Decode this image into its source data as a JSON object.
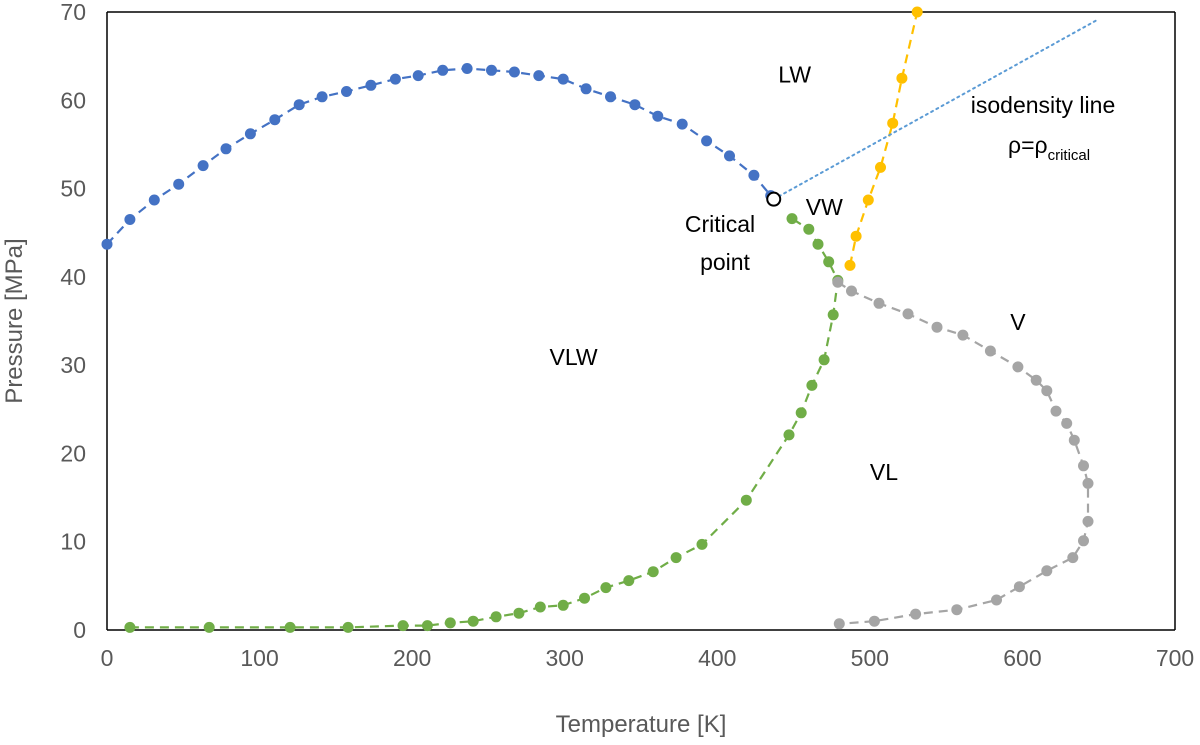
{
  "chart_data": {
    "type": "scatter",
    "xlabel": "Temperature [K]",
    "ylabel": "Pressure [MPa]",
    "xlim": [
      0,
      700
    ],
    "ylim": [
      0,
      70
    ],
    "xticks": [
      0,
      100,
      200,
      300,
      400,
      500,
      600,
      700
    ],
    "yticks": [
      0,
      10,
      20,
      30,
      40,
      50,
      60,
      70
    ],
    "grid": false,
    "legend": "none",
    "series": [
      {
        "color": "#4472C4",
        "style": "dashed-line-with-markers",
        "points": [
          [
            0,
            43.7
          ],
          [
            15,
            46.5
          ],
          [
            31,
            48.7
          ],
          [
            47,
            50.5
          ],
          [
            63,
            52.6
          ],
          [
            78,
            54.5
          ],
          [
            94,
            56.2
          ],
          [
            110,
            57.8
          ],
          [
            126,
            59.5
          ],
          [
            141,
            60.4
          ],
          [
            157,
            61.0
          ],
          [
            173,
            61.7
          ],
          [
            189,
            62.4
          ],
          [
            204,
            62.8
          ],
          [
            220,
            63.4
          ],
          [
            236,
            63.6
          ],
          [
            252,
            63.4
          ],
          [
            267,
            63.2
          ],
          [
            283,
            62.8
          ],
          [
            299,
            62.4
          ],
          [
            314,
            61.3
          ],
          [
            330,
            60.4
          ],
          [
            346,
            59.5
          ],
          [
            361,
            58.2
          ],
          [
            377,
            57.3
          ],
          [
            393,
            55.4
          ],
          [
            408,
            53.7
          ],
          [
            424,
            51.5
          ],
          [
            435,
            49.2
          ]
        ]
      },
      {
        "color": "#70AD47",
        "style": "dashed-line-with-markers",
        "points": [
          [
            15,
            0.3
          ],
          [
            67,
            0.3
          ],
          [
            120,
            0.3
          ],
          [
            158,
            0.3
          ],
          [
            194,
            0.5
          ],
          [
            210,
            0.5
          ],
          [
            225,
            0.8
          ],
          [
            240,
            1.0
          ],
          [
            255,
            1.5
          ],
          [
            270,
            1.9
          ],
          [
            284,
            2.6
          ],
          [
            299,
            2.8
          ],
          [
            313,
            3.6
          ],
          [
            327,
            4.8
          ],
          [
            342,
            5.6
          ],
          [
            358,
            6.6
          ],
          [
            373,
            8.2
          ],
          [
            390,
            9.7
          ],
          [
            419,
            14.7
          ],
          [
            447,
            22.1
          ],
          [
            455,
            24.6
          ],
          [
            462,
            27.7
          ],
          [
            470,
            30.6
          ],
          [
            476,
            35.7
          ],
          [
            479,
            39.6
          ],
          [
            473,
            41.7
          ],
          [
            466,
            43.7
          ],
          [
            460,
            45.4
          ],
          [
            449,
            46.6
          ]
        ]
      },
      {
        "color": "#A5A5A5",
        "style": "dashed-line-with-markers",
        "points": [
          [
            479,
            39.4
          ],
          [
            488,
            38.4
          ],
          [
            506,
            37.0
          ],
          [
            525,
            35.8
          ],
          [
            544,
            34.3
          ],
          [
            561,
            33.4
          ],
          [
            579,
            31.6
          ],
          [
            597,
            29.8
          ],
          [
            609,
            28.3
          ],
          [
            616,
            27.1
          ],
          [
            622,
            24.8
          ],
          [
            629,
            23.4
          ],
          [
            634,
            21.5
          ],
          [
            640,
            18.6
          ],
          [
            643,
            16.6
          ],
          [
            643,
            12.3
          ],
          [
            640,
            10.1
          ],
          [
            633,
            8.2
          ],
          [
            616,
            6.7
          ],
          [
            598,
            4.9
          ],
          [
            583,
            3.4
          ],
          [
            557,
            2.3
          ],
          [
            530,
            1.8
          ],
          [
            503,
            1.0
          ],
          [
            480,
            0.7
          ]
        ]
      },
      {
        "color": "#FFC000",
        "style": "dashed-line-with-markers",
        "points": [
          [
            487,
            41.3
          ],
          [
            491,
            44.6
          ],
          [
            499,
            48.7
          ],
          [
            507,
            52.4
          ],
          [
            515,
            57.4
          ],
          [
            521,
            62.5
          ],
          [
            531,
            70.0
          ]
        ]
      },
      {
        "color": "#5B9BD5",
        "style": "dotted-line",
        "points": [
          [
            437,
            48.8
          ],
          [
            650,
            69.2
          ]
        ]
      }
    ],
    "critical_point": {
      "x": 437,
      "y": 48.8
    },
    "annotations": [
      {
        "text": "LW",
        "x": 440,
        "y": 62
      },
      {
        "text": "VW",
        "x": 458,
        "y": 47
      },
      {
        "text": "VLW",
        "x": 290,
        "y": 30
      },
      {
        "text": "V",
        "x": 592,
        "y": 34
      },
      {
        "text": "VL",
        "x": 500,
        "y": 17
      }
    ],
    "isodensity_label": "isodensity line",
    "rho_symbol": "ρ=ρ",
    "rho_subscript": "critical",
    "critical_label_1": "Critical",
    "critical_label_2": "point"
  }
}
